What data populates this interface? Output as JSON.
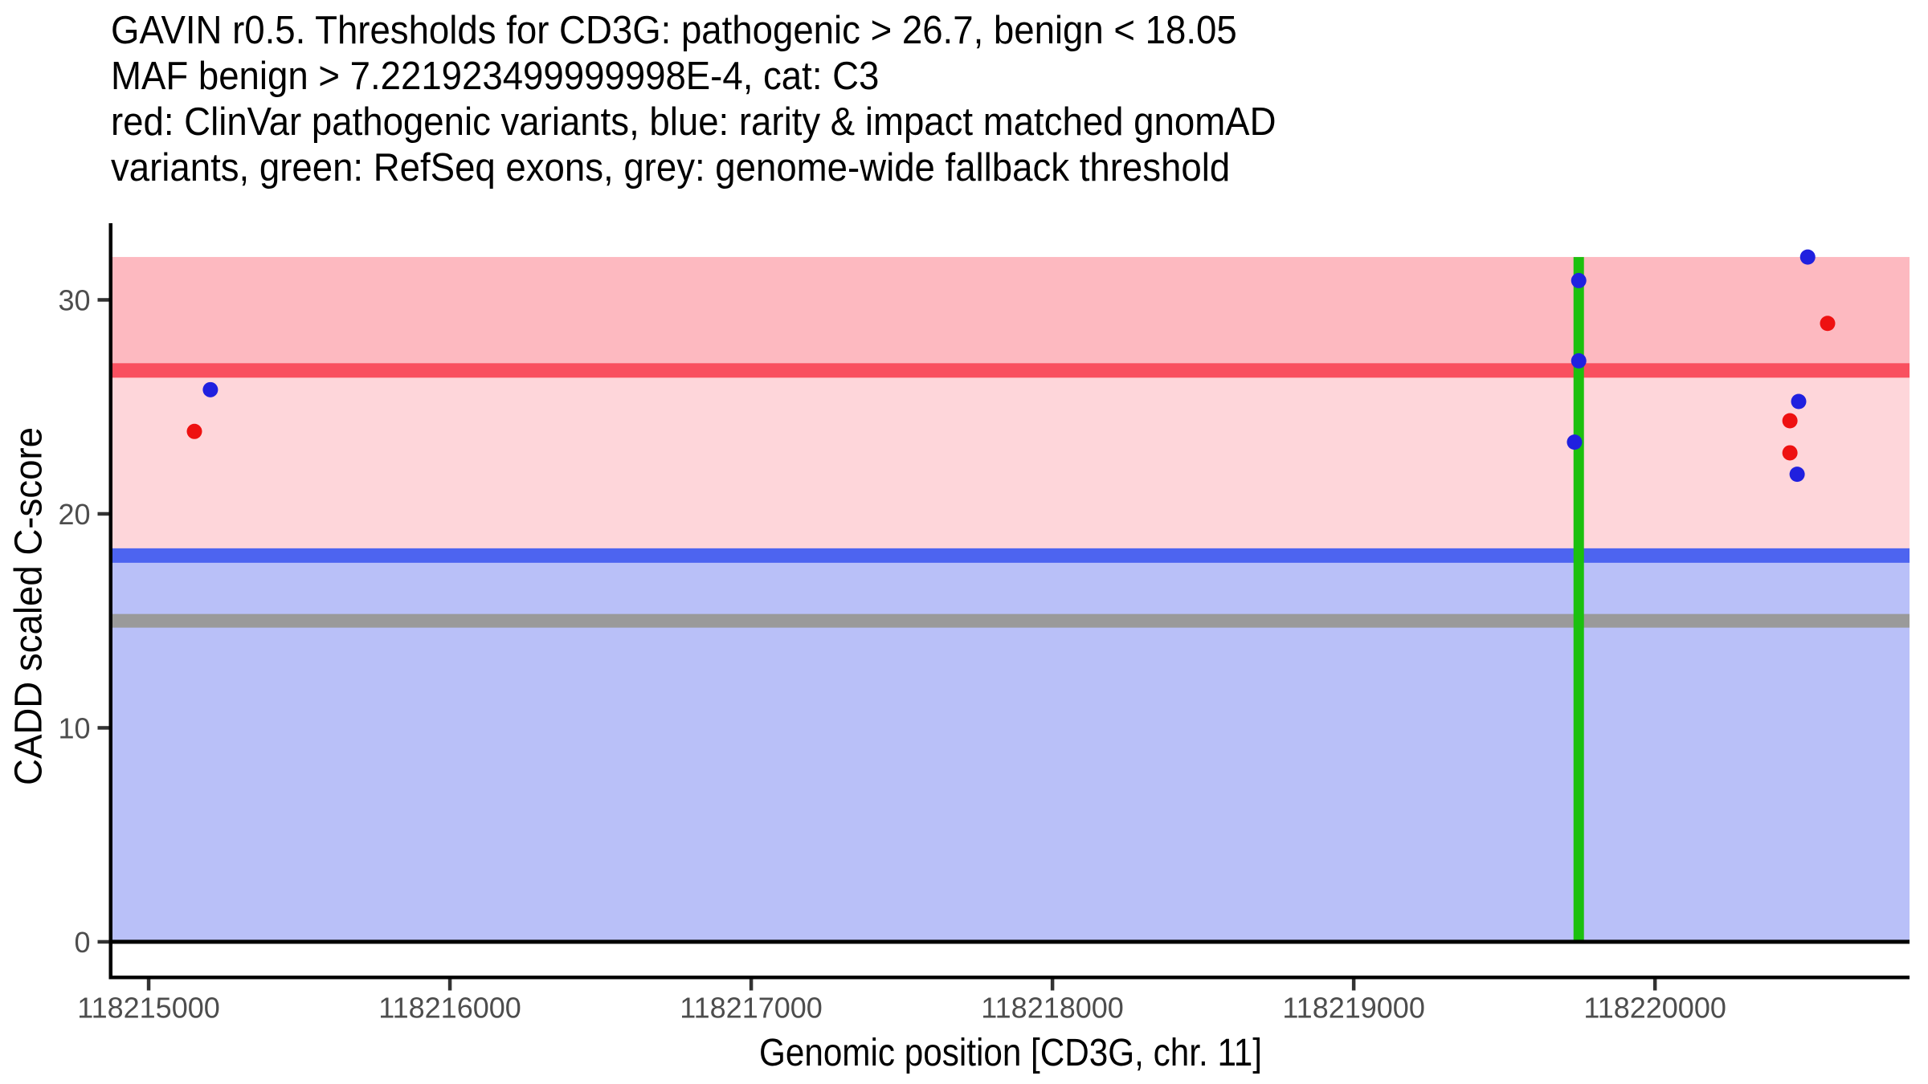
{
  "chart_data": {
    "type": "scatter",
    "title_lines": [
      "GAVIN r0.5. Thresholds for CD3G: pathogenic > 26.7, benign < 18.05",
      "MAF benign > 7.221923499999998E-4, cat: C3",
      "red: ClinVar pathogenic variants, blue: rarity & impact matched gnomAD",
      "variants, green: RefSeq exons, grey: genome-wide fallback threshold"
    ],
    "xlabel": "Genomic position [CD3G, chr. 11]",
    "ylabel": "CADD scaled C-score",
    "gene": "CD3G",
    "chromosome": "11",
    "thresholds": {
      "pathogenic_gt": 26.7,
      "benign_lt": 18.05,
      "maf_benign_gt": "7.221923499999998E-4",
      "category": "C3",
      "genome_wide_fallback": 15
    },
    "xlim": [
      118214880,
      118220845
    ],
    "ylim": [
      -1.58,
      33.58
    ],
    "x_ticks": [
      118215000,
      118216000,
      118217000,
      118218000,
      118219000,
      118220000
    ],
    "y_ticks": [
      0,
      10,
      20,
      30
    ],
    "grid": false,
    "legend_position": "none",
    "bands": [
      {
        "name": "benign-region-band",
        "y0": 0,
        "y1": 18.05,
        "color": "#B9C0F8"
      },
      {
        "name": "uncertain-region-band",
        "y0": 18.05,
        "y1": 32.0,
        "color": "#FED6DA"
      },
      {
        "name": "pathogenic-region-band",
        "y0": 26.7,
        "y1": 32.0,
        "color": "#FDB9C0"
      }
    ],
    "threshold_lines": [
      {
        "name": "pathogenic-threshold-line",
        "y": 26.7,
        "color": "#F9505F",
        "thickness_px": 18
      },
      {
        "name": "benign-threshold-line",
        "y": 18.05,
        "color": "#4D64F0",
        "thickness_px": 18
      },
      {
        "name": "fallback-threshold-line",
        "y": 15,
        "color": "#9A9A9A",
        "thickness_px": 17
      }
    ],
    "exon_lines": [
      {
        "name": "refseq-exon-line",
        "x": 118219747,
        "y0": 0,
        "y1": 32.0,
        "color": "#1CC00E",
        "thickness_px": 13
      }
    ],
    "baseline": {
      "name": "zero-baseline",
      "y": 0,
      "color": "#000000",
      "thickness_px": 5
    },
    "series": [
      {
        "name": "ClinVar pathogenic variants",
        "color": "#EE1111",
        "points": [
          {
            "x": 118215152,
            "y": 23.85
          },
          {
            "x": 118220573,
            "y": 28.9
          },
          {
            "x": 118220448,
            "y": 24.35
          },
          {
            "x": 118220448,
            "y": 22.85
          }
        ]
      },
      {
        "name": "rarity & impact matched gnomAD variants",
        "color": "#2020DF",
        "points": [
          {
            "x": 118215205,
            "y": 25.8
          },
          {
            "x": 118219747,
            "y": 30.9
          },
          {
            "x": 118219747,
            "y": 27.15
          },
          {
            "x": 118219733,
            "y": 23.35
          },
          {
            "x": 118220507,
            "y": 32.0
          },
          {
            "x": 118220477,
            "y": 25.25
          },
          {
            "x": 118220472,
            "y": 21.85
          }
        ]
      }
    ],
    "point_radius_px": 9.5,
    "axis_style": {
      "axis_line_color": "#000000",
      "tick_color": "#333333",
      "tick_label_color": "#4D4D4D",
      "tick_label_font_px": 36
    }
  }
}
